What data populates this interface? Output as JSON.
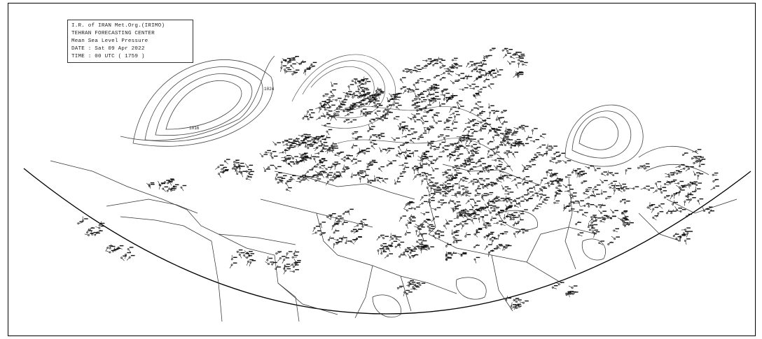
{
  "legend": {
    "line1": "I.R. of IRAN Met.Org.(IRIMO)",
    "line2": "TEHRAN FORECASTING CENTER",
    "line3": "Mean Sea Level Pressure",
    "line4": "DATE :  Sat 09 Apr 2022",
    "line5": "TIME :  00 UTC   (  1759 )"
  },
  "isobar_labels": {
    "l1": "1024",
    "l2": "1016"
  },
  "colors": {
    "background": "#ffffff",
    "lines": "#000000",
    "station_plots": "#111111"
  }
}
